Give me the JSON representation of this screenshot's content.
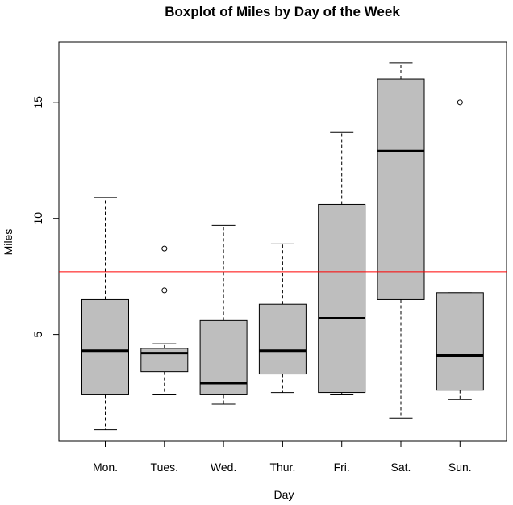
{
  "chart_data": {
    "type": "boxplot",
    "title": "Boxplot of Miles by Day of the Week",
    "xlabel": "Day",
    "ylabel": "Miles",
    "ylim": [
      0.4,
      17.6
    ],
    "yticks": [
      5,
      10,
      15
    ],
    "reference_line": {
      "y": 7.7,
      "color": "#ff0000"
    },
    "box_color": "#bebebe",
    "categories": [
      "Mon.",
      "Tues.",
      "Wed.",
      "Thur.",
      "Fri.",
      "Sat.",
      "Sun."
    ],
    "boxes": [
      {
        "name": "Mon.",
        "min": 0.9,
        "q1": 2.4,
        "median": 4.3,
        "q3": 6.5,
        "max": 10.9,
        "outliers": []
      },
      {
        "name": "Tues.",
        "min": 2.4,
        "q1": 3.4,
        "median": 4.2,
        "q3": 4.4,
        "max": 4.6,
        "outliers": [
          6.9,
          8.7
        ]
      },
      {
        "name": "Wed.",
        "min": 2.0,
        "q1": 2.4,
        "median": 2.9,
        "q3": 5.6,
        "max": 9.7,
        "outliers": []
      },
      {
        "name": "Thur.",
        "min": 2.5,
        "q1": 3.3,
        "median": 4.3,
        "q3": 6.3,
        "max": 8.9,
        "outliers": []
      },
      {
        "name": "Fri.",
        "min": 2.4,
        "q1": 2.5,
        "median": 5.7,
        "q3": 10.6,
        "max": 13.7,
        "outliers": []
      },
      {
        "name": "Sat.",
        "min": 1.4,
        "q1": 6.5,
        "median": 12.9,
        "q3": 16.0,
        "max": 16.7,
        "outliers": []
      },
      {
        "name": "Sun.",
        "min": 2.2,
        "q1": 2.6,
        "median": 4.1,
        "q3": 6.8,
        "max": 6.8,
        "outliers": [
          15.0
        ]
      }
    ]
  }
}
